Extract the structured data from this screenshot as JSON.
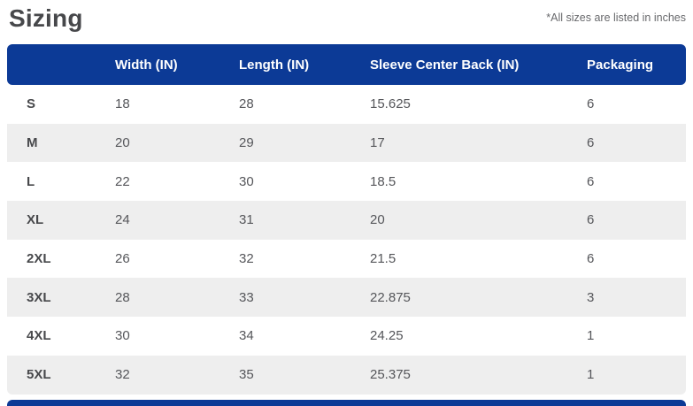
{
  "page": {
    "title": "Sizing",
    "note": "*All sizes are listed in inches"
  },
  "colors": {
    "header_bg": "#0c3a96",
    "header_text": "#ffffff",
    "row_alt_bg": "#eeeeee",
    "title_text": "#47484b",
    "note_text": "#68696c",
    "cell_text": "#55565a"
  },
  "table": {
    "columns": [
      "",
      "Width (IN)",
      "Length (IN)",
      "Sleeve Center Back (IN)",
      "Packaging"
    ],
    "rows": [
      {
        "size": "S",
        "width": "18",
        "length": "28",
        "sleeve": "15.625",
        "packaging": "6"
      },
      {
        "size": "M",
        "width": "20",
        "length": "29",
        "sleeve": "17",
        "packaging": "6"
      },
      {
        "size": "L",
        "width": "22",
        "length": "30",
        "sleeve": "18.5",
        "packaging": "6"
      },
      {
        "size": "XL",
        "width": "24",
        "length": "31",
        "sleeve": "20",
        "packaging": "6"
      },
      {
        "size": "2XL",
        "width": "26",
        "length": "32",
        "sleeve": "21.5",
        "packaging": "6"
      },
      {
        "size": "3XL",
        "width": "28",
        "length": "33",
        "sleeve": "22.875",
        "packaging": "3"
      },
      {
        "size": "4XL",
        "width": "30",
        "length": "34",
        "sleeve": "24.25",
        "packaging": "1"
      },
      {
        "size": "5XL",
        "width": "32",
        "length": "35",
        "sleeve": "25.375",
        "packaging": "1"
      }
    ]
  }
}
